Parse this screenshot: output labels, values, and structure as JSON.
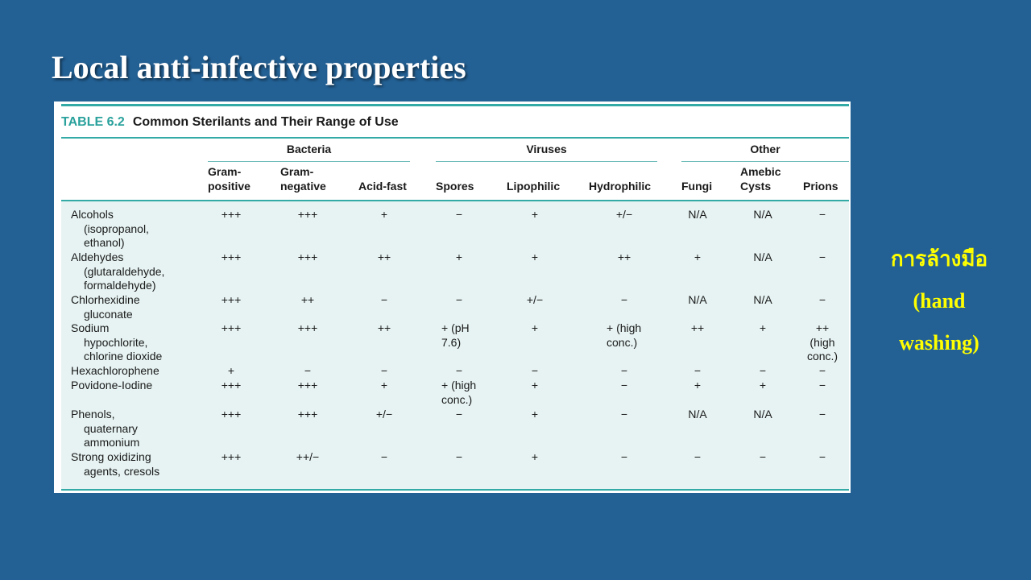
{
  "slide": {
    "title": "Local anti-infective properties",
    "side_note": [
      "การล้างมือ",
      "(hand",
      "washing)"
    ]
  },
  "table": {
    "label": "TABLE 6.2",
    "caption": "Common Sterilants and Their Range of Use",
    "groups": [
      "Bacteria",
      "Viruses",
      "Other"
    ],
    "columns": [
      [
        "Gram-",
        "positive"
      ],
      [
        "Gram-",
        "negative"
      ],
      [
        "Acid-fast"
      ],
      [
        "Spores"
      ],
      [
        "Lipophilic"
      ],
      [
        "Hydrophilic"
      ],
      [
        "Fungi"
      ],
      [
        "Amebic",
        "Cysts"
      ],
      [
        "Prions"
      ]
    ],
    "rows": [
      {
        "agent": [
          "Alcohols",
          "(isopropanol,",
          "ethanol)"
        ],
        "values": [
          "+++",
          "+++",
          "+",
          "−",
          "+",
          "+/−",
          "N/A",
          "N/A",
          "−"
        ]
      },
      {
        "agent": [
          "Aldehydes",
          "(glutaraldehyde,",
          "formaldehyde)"
        ],
        "values": [
          "+++",
          "+++",
          "++",
          "+",
          "+",
          "++",
          "+",
          "N/A",
          "−"
        ]
      },
      {
        "agent": [
          "Chlorhexidine",
          "gluconate"
        ],
        "values": [
          "+++",
          "++",
          "−",
          "−",
          "+/−",
          "−",
          "N/A",
          "N/A",
          "−"
        ]
      },
      {
        "agent": [
          "Sodium",
          "hypochlorite,",
          "chlorine dioxide"
        ],
        "values": [
          "+++",
          "+++",
          "++",
          "+ (pH\n7.6)",
          "+",
          "+ (high\nconc.)",
          "++",
          "+",
          "++\n(high\nconc.)"
        ]
      },
      {
        "agent": [
          "Hexachlorophene"
        ],
        "values": [
          "+",
          "−",
          "−",
          "−",
          "−",
          "−",
          "−",
          "−",
          "−"
        ]
      },
      {
        "agent": [
          "Povidone-Iodine"
        ],
        "values": [
          "+++",
          "+++",
          "+",
          "+ (high\nconc.)",
          "+",
          "−",
          "+",
          "+",
          "−"
        ]
      },
      {
        "agent": [
          "Phenols,",
          "quaternary",
          "ammonium"
        ],
        "values": [
          "+++",
          "+++",
          "+/−",
          "−",
          "+",
          "−",
          "N/A",
          "N/A",
          "−"
        ]
      },
      {
        "agent": [
          "Strong oxidizing",
          "agents, cresols"
        ],
        "values": [
          "+++",
          "++/−",
          "−",
          "−",
          "+",
          "−",
          "−",
          "−",
          "−"
        ]
      }
    ]
  }
}
